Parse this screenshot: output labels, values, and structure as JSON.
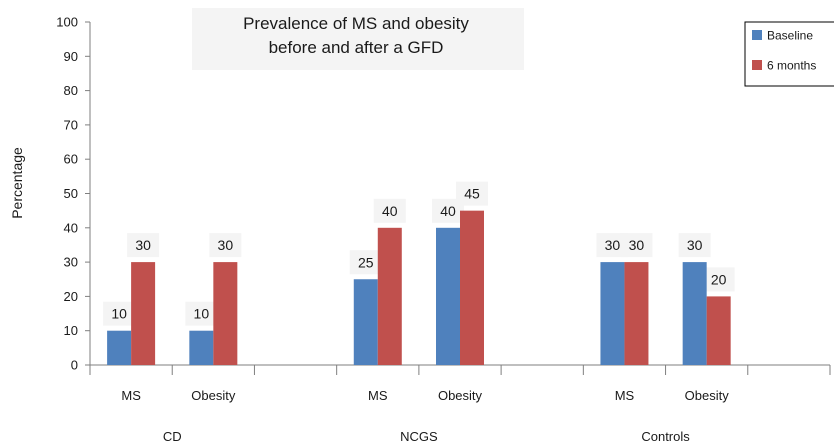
{
  "chart_data": {
    "type": "bar",
    "title_lines": [
      "Prevalence of MS and obesity",
      "before and after a GFD"
    ],
    "xlabel": "",
    "ylabel": "Percentage",
    "ylim": [
      0,
      100
    ],
    "yticks": [
      0,
      10,
      20,
      30,
      40,
      50,
      60,
      70,
      80,
      90,
      100
    ],
    "grid": false,
    "legend_position": "top-right",
    "groups": [
      {
        "label": "CD",
        "categories": [
          "MS",
          "Obesity"
        ]
      },
      {
        "label": "NCGS",
        "categories": [
          "MS",
          "Obesity"
        ]
      },
      {
        "label": "Controls",
        "categories": [
          "MS",
          "Obesity"
        ]
      }
    ],
    "series": [
      {
        "name": "Baseline",
        "color": "#4f81bd",
        "values": [
          10,
          10,
          25,
          40,
          30,
          30
        ]
      },
      {
        "name": "6 months",
        "color": "#c0504d",
        "values": [
          30,
          30,
          40,
          45,
          30,
          20
        ]
      }
    ]
  }
}
